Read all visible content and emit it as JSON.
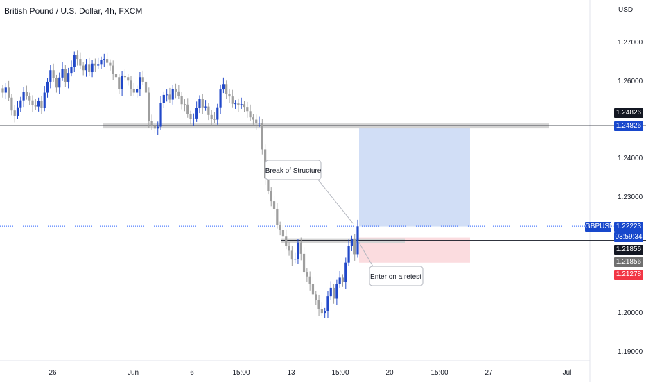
{
  "header": {
    "title": "British Pound / U.S. Dollar, 4h, FXCM",
    "currency": "USD"
  },
  "price_axis": {
    "ticks": [
      "1.27000",
      "1.26000",
      "1.24000",
      "1.23000",
      "1.20000",
      "1.19000"
    ],
    "labels": {
      "resistance_black": "1.24826",
      "resistance_blue": "1.24826",
      "symbol": "GBPUSD",
      "current_price": "1.22223",
      "countdown": "03:59:34",
      "entry_black": "1.21856",
      "entry_grey": "1.21856",
      "stop": "1.21278"
    }
  },
  "time_axis": {
    "ticks": [
      "26",
      "Jun",
      "6",
      "15:00",
      "13",
      "15:00",
      "20",
      "15:00",
      "27",
      "Jul"
    ]
  },
  "annotations": {
    "bos": "Break of Structure",
    "entry": "Enter on a retest"
  },
  "colors": {
    "up_candle": "#2148c9",
    "down_candle": "#9e9e9e",
    "target_zone": "#cfdcf5",
    "stop_zone": "#fbdcdf",
    "current_line": "#2962ff",
    "stop_label": "#f23645",
    "symbol_label": "#1848cc",
    "zone_bar": "#d3d3d3"
  },
  "chart_data": {
    "type": "candlestick",
    "symbol": "GBPUSD",
    "timeframe": "4h",
    "x": [
      "bar 1",
      "…",
      "bar 120"
    ],
    "ylim": [
      1.189,
      1.2775
    ],
    "levels": {
      "resistance": 1.24826,
      "current": 1.22223,
      "entry": 1.21856,
      "stop": 1.21278,
      "target": 1.24826
    },
    "closes": [
      1.2568,
      1.2581,
      1.2555,
      1.2522,
      1.2508,
      1.253,
      1.2548,
      1.2569,
      1.2559,
      1.2548,
      1.2535,
      1.2532,
      1.2546,
      1.2529,
      1.2568,
      1.2596,
      1.2626,
      1.2605,
      1.2581,
      1.2607,
      1.263,
      1.2596,
      1.2619,
      1.2634,
      1.2665,
      1.2655,
      1.2638,
      1.2626,
      1.2642,
      1.2621,
      1.2643,
      1.2638,
      1.2642,
      1.2652,
      1.2655,
      1.2645,
      1.2638,
      1.2617,
      1.2608,
      1.2577,
      1.2611,
      1.2608,
      1.2599,
      1.2577,
      1.2568,
      1.2577,
      1.2608,
      1.2596,
      1.2568,
      1.2494,
      1.2481,
      1.2475,
      1.248,
      1.2542,
      1.2562,
      1.2563,
      1.255,
      1.2578,
      1.2571,
      1.256,
      1.2538,
      1.2537,
      1.2512,
      1.2499,
      1.2501,
      1.2528,
      1.2552,
      1.253,
      1.2532,
      1.251,
      1.25,
      1.2498,
      1.253,
      1.2576,
      1.259,
      1.2565,
      1.2558,
      1.2539,
      1.254,
      1.2535,
      1.2538,
      1.2531,
      1.252,
      1.2504,
      1.2498,
      1.2488,
      1.249,
      1.2421,
      1.2346,
      1.2314,
      1.2287,
      1.2266,
      1.2225,
      1.2212,
      1.2197,
      1.2172,
      1.2159,
      1.2136,
      1.2138,
      1.218,
      1.2151,
      1.2104,
      1.2092,
      1.2073,
      1.2046,
      1.2032,
      1.2008,
      1.1998,
      1.2002,
      1.2041,
      1.2063,
      1.2035,
      1.2072,
      1.2089,
      1.2078,
      1.2128,
      1.2171,
      1.2189,
      1.215,
      1.2222
    ],
    "opens": [
      1.2579,
      1.2568,
      1.2581,
      1.2555,
      1.2522,
      1.2508,
      1.253,
      1.2548,
      1.2569,
      1.2559,
      1.2548,
      1.2535,
      1.2532,
      1.2546,
      1.2529,
      1.2568,
      1.2596,
      1.2626,
      1.2605,
      1.2581,
      1.2607,
      1.263,
      1.2596,
      1.2619,
      1.2634,
      1.2665,
      1.2655,
      1.2638,
      1.2626,
      1.2642,
      1.2621,
      1.2643,
      1.2638,
      1.2642,
      1.2652,
      1.2655,
      1.2645,
      1.2638,
      1.2617,
      1.2608,
      1.2577,
      1.2611,
      1.2608,
      1.2599,
      1.2577,
      1.2568,
      1.2577,
      1.2608,
      1.2596,
      1.2568,
      1.2494,
      1.2481,
      1.2475,
      1.248,
      1.2542,
      1.2562,
      1.2563,
      1.255,
      1.2578,
      1.2571,
      1.256,
      1.2538,
      1.2537,
      1.2512,
      1.2499,
      1.2501,
      1.2528,
      1.2552,
      1.253,
      1.2532,
      1.251,
      1.25,
      1.2498,
      1.253,
      1.2576,
      1.259,
      1.2565,
      1.2558,
      1.2539,
      1.254,
      1.2535,
      1.2538,
      1.2531,
      1.252,
      1.2504,
      1.2498,
      1.2488,
      1.249,
      1.2421,
      1.2346,
      1.2314,
      1.2287,
      1.2266,
      1.2225,
      1.2212,
      1.2197,
      1.2172,
      1.2159,
      1.2136,
      1.2138,
      1.218,
      1.2151,
      1.2104,
      1.2092,
      1.2073,
      1.2046,
      1.2032,
      1.2008,
      1.1998,
      1.2002,
      1.2041,
      1.2063,
      1.2035,
      1.2072,
      1.2089,
      1.2078,
      1.2128,
      1.2171,
      1.2189,
      1.215
    ]
  }
}
